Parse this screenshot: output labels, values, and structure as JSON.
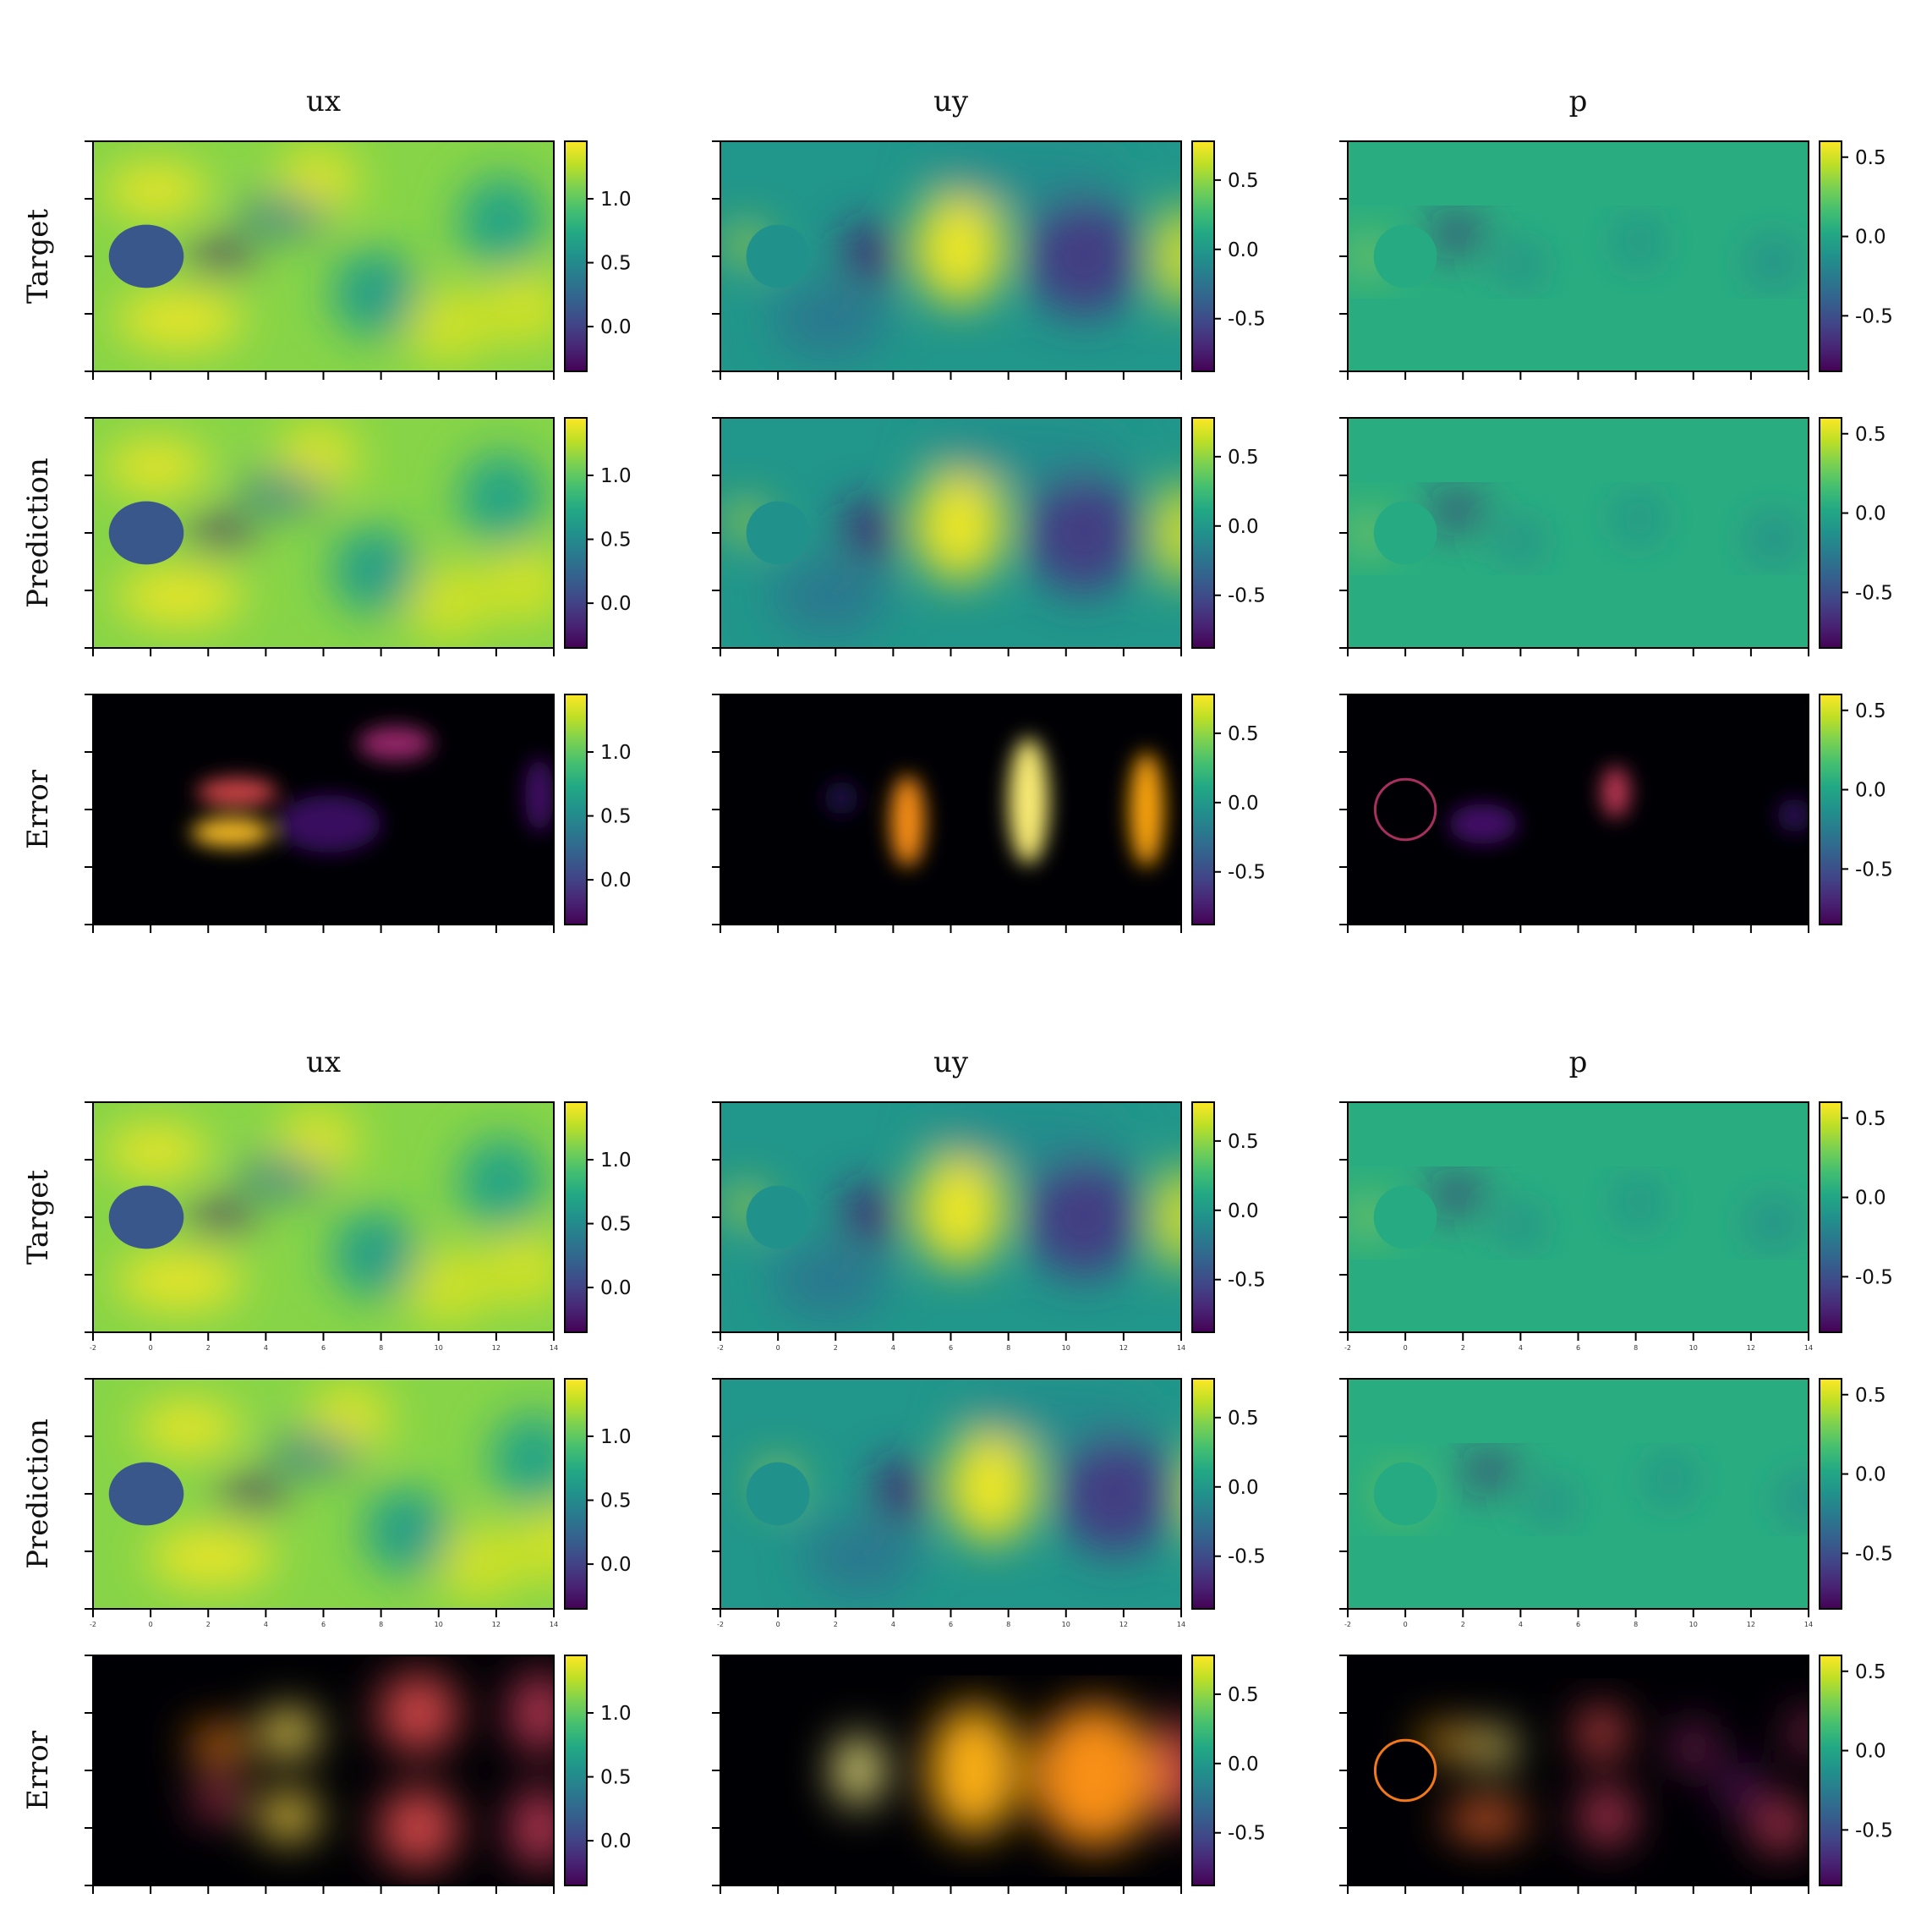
{
  "chart_data": {
    "type": "heatmap",
    "colors": {
      "field_colormap": "viridis",
      "error_colormap": "inferno"
    },
    "field_colorbars": {
      "ux": {
        "range": [
          -0.35,
          1.45
        ],
        "ticks": [
          "0.0",
          "0.5",
          "1.0"
        ],
        "tick_values": [
          0.0,
          0.5,
          1.0
        ]
      },
      "uy": {
        "range": [
          -0.88,
          0.78
        ],
        "ticks": [
          "-0.5",
          "0.0",
          "0.5"
        ],
        "tick_values": [
          -0.5,
          0.0,
          0.5
        ]
      },
      "p": {
        "range": [
          -0.85,
          0.6
        ],
        "ticks": [
          "-0.5",
          "0.0",
          "0.5"
        ],
        "tick_values": [
          -0.5,
          0.0,
          0.5
        ]
      }
    },
    "x_axis": {
      "range": [
        -2,
        14
      ],
      "ticks": [
        "-2",
        "0",
        "2",
        "4",
        "6",
        "8",
        "10",
        "12",
        "14"
      ],
      "tick_values": [
        -2,
        0,
        2,
        4,
        6,
        8,
        10,
        12,
        14
      ]
    },
    "y_axis": {
      "range": [
        -4,
        4
      ],
      "tick_values": [
        -4,
        -2,
        0,
        2,
        4
      ]
    },
    "obstacle": {
      "shape": "circle",
      "center": [
        0,
        0
      ],
      "radius": 1
    },
    "groups": [
      {
        "columns": [
          "ux",
          "uy",
          "p"
        ],
        "rows": [
          "Target",
          "Prediction",
          "Error"
        ],
        "x_tick_labels_shown_on_rows": []
      },
      {
        "columns": [
          "ux",
          "uy",
          "p"
        ],
        "rows": [
          "Target",
          "Prediction",
          "Error"
        ],
        "x_tick_labels_shown_on_rows": [
          "Target",
          "Prediction"
        ]
      }
    ]
  }
}
